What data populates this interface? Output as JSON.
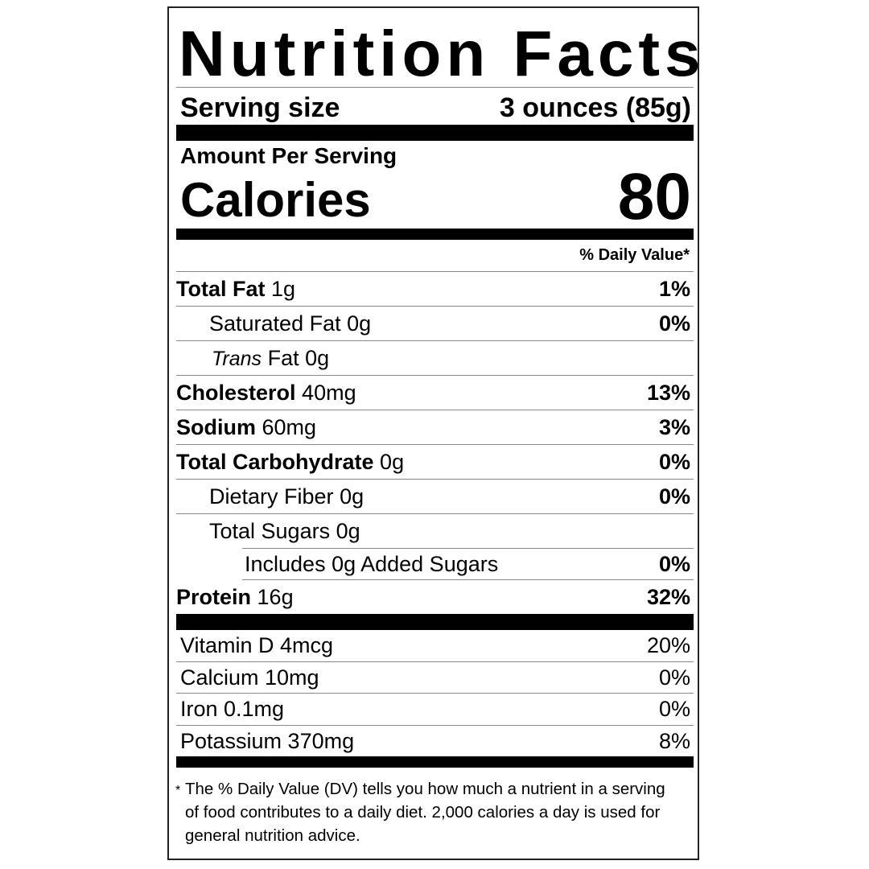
{
  "title": "Nutrition Facts",
  "serving": {
    "label": "Serving size",
    "value": "3 ounces (85g)"
  },
  "amount_per_serving": "Amount Per Serving",
  "calories": {
    "label": "Calories",
    "value": "80"
  },
  "daily_value_header": "% Daily Value*",
  "nutrients": [
    {
      "name": "Total Fat",
      "amount": "1g",
      "dv": "1%"
    },
    {
      "name": "Saturated Fat",
      "amount": "0g",
      "dv": "0%"
    },
    {
      "name": "Trans",
      "name_rest": "Fat",
      "amount": "0g",
      "dv": ""
    },
    {
      "name": "Cholesterol",
      "amount": "40mg",
      "dv": "13%"
    },
    {
      "name": "Sodium",
      "amount": "60mg",
      "dv": "3%"
    },
    {
      "name": "Total Carbohydrate",
      "amount": "0g",
      "dv": "0%"
    },
    {
      "name": "Dietary Fiber",
      "amount": "0g",
      "dv": "0%"
    },
    {
      "name": "Total Sugars",
      "amount": "0g",
      "dv": ""
    },
    {
      "name": "Includes 0g Added Sugars",
      "amount": "",
      "dv": "0%"
    },
    {
      "name": "Protein",
      "amount": "16g",
      "dv": "32%"
    }
  ],
  "vitamins": [
    {
      "name": "Vitamin D 4mcg",
      "dv": "20%"
    },
    {
      "name": "Calcium 10mg",
      "dv": "0%"
    },
    {
      "name": "Iron 0.1mg",
      "dv": "0%"
    },
    {
      "name": "Potassium 370mg",
      "dv": "8%"
    }
  ],
  "footnote": {
    "asterisk": "*",
    "text": "The % Daily Value (DV) tells you how much a nutrient in a serving of food contributes to a daily diet. 2,000 calories a day is used for general nutrition advice."
  }
}
